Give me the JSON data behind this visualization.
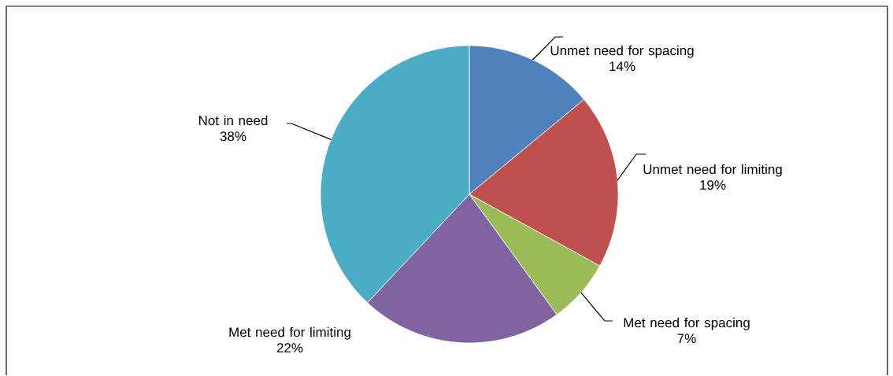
{
  "chart_data": {
    "type": "pie",
    "categories": [
      "Unmet need for spacing",
      "Unmet need for limiting",
      "Met need for spacing",
      "Met need for limiting",
      "Not in need"
    ],
    "values": [
      14,
      19,
      7,
      22,
      38
    ],
    "value_labels": [
      "14%",
      "19%",
      "7%",
      "22%",
      "38%"
    ],
    "colors": [
      "#4f81bd",
      "#c0504d",
      "#9bbb59",
      "#8064a2",
      "#4bacc6"
    ]
  }
}
